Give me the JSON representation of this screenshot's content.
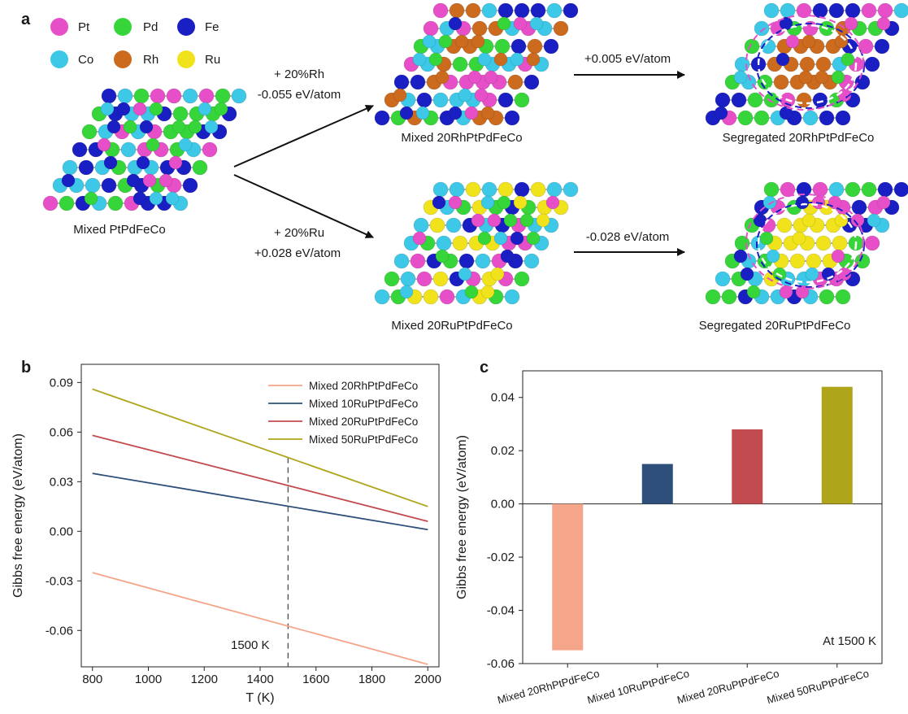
{
  "panels": {
    "a": "a",
    "b": "b",
    "c": "c"
  },
  "legend_elements": [
    {
      "symbol": "Pt",
      "color": "#e64fc8"
    },
    {
      "symbol": "Pd",
      "color": "#36d63a"
    },
    {
      "symbol": "Fe",
      "color": "#1a1fc4"
    },
    {
      "symbol": "Co",
      "color": "#3cc8e6"
    },
    {
      "symbol": "Rh",
      "color": "#cc6a1e"
    },
    {
      "symbol": "Ru",
      "color": "#f0e31c"
    }
  ],
  "scheme": {
    "start_label": "Mixed PtPdFeCo",
    "rh_add": {
      "line1": "+ 20%Rh",
      "line2": "-0.055 eV/atom"
    },
    "ru_add": {
      "line1": "+ 20%Ru",
      "line2": "+0.028 eV/atom"
    },
    "mixed_rh_label": "Mixed 20RhPtPdFeCo",
    "mixed_ru_label": "Mixed 20RuPtPdFeCo",
    "rh_segregation_energy": "+0.005 eV/atom",
    "ru_segregation_energy": "-0.028 eV/atom",
    "seg_rh_label": "Segregated 20RhPtPdFeCo",
    "seg_ru_label": "Segregated 20RuPtPdFeCo"
  },
  "chart_data": [
    {
      "type": "line",
      "panel": "b",
      "xlabel": "T (K)",
      "ylabel": "Gibbs free energy (eV/atom)",
      "xlim": [
        760,
        2040
      ],
      "ylim": [
        -0.082,
        0.101
      ],
      "xticks": [
        800,
        1000,
        1200,
        1400,
        1600,
        1800,
        2000
      ],
      "yticks": [
        0.09,
        0.06,
        0.03,
        0.0,
        -0.03,
        -0.06
      ],
      "ytick_labels": [
        "0.09",
        "0.06",
        "0.03",
        "0.00",
        "-0.03",
        "-0.06"
      ],
      "legend_position": "top-right",
      "series": [
        {
          "name": "Mixed 20RhPtPdFeCo",
          "color": "#f4a58a",
          "x": [
            800,
            2000
          ],
          "y": [
            -0.025,
            -0.0805
          ]
        },
        {
          "name": "Mixed 10RuPtPdFeCo",
          "color": "#2e4f7a",
          "x": [
            800,
            2000
          ],
          "y": [
            0.035,
            0.001
          ]
        },
        {
          "name": "Mixed 20RuPtPdFeCo",
          "color": "#c24b4f",
          "x": [
            800,
            2000
          ],
          "y": [
            0.058,
            0.006
          ]
        },
        {
          "name": "Mixed 50RuPtPdFeCo",
          "color": "#afa51a",
          "x": [
            800,
            2000
          ],
          "y": [
            0.086,
            0.015
          ]
        }
      ],
      "reference_line": {
        "x": 1500,
        "label": "1500 K"
      }
    },
    {
      "type": "bar",
      "panel": "c",
      "ylabel": "Gibbs free energy (eV/atom)",
      "ylim": [
        -0.06,
        0.05
      ],
      "yticks": [
        0.04,
        0.02,
        0.0,
        -0.02,
        -0.04,
        -0.06
      ],
      "ytick_labels": [
        "0.04",
        "0.02",
        "0.00",
        "-0.02",
        "-0.04",
        "-0.06"
      ],
      "categories": [
        "Mixed 20RhPtPdFeCo",
        "Mixed 10RuPtPdFeCo",
        "Mixed 20RuPtPdFeCo",
        "Mixed 50RuPtPdFeCo"
      ],
      "values": [
        -0.055,
        0.015,
        0.028,
        0.044
      ],
      "colors": [
        "#f4a58a",
        "#2e4f7a",
        "#c24b4f",
        "#afa51a"
      ],
      "annotation": "At 1500 K"
    }
  ]
}
